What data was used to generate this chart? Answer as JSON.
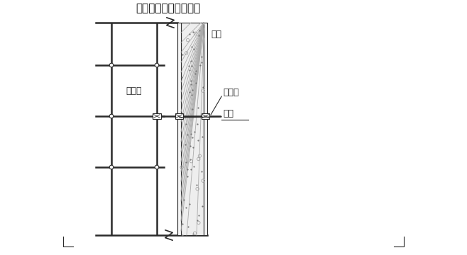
{
  "title": "连墙件扣件连接示意图",
  "title_color": "#000000",
  "bg_color": "#ffffff",
  "label_jiaoushujia": "脚手架",
  "label_jiegou": "结构",
  "label_lianjiangang": "连墙杆",
  "label_koujian": "扣件",
  "line_color": "#2a2a2a",
  "figsize": [
    6.58,
    3.6
  ],
  "dpi": 100
}
